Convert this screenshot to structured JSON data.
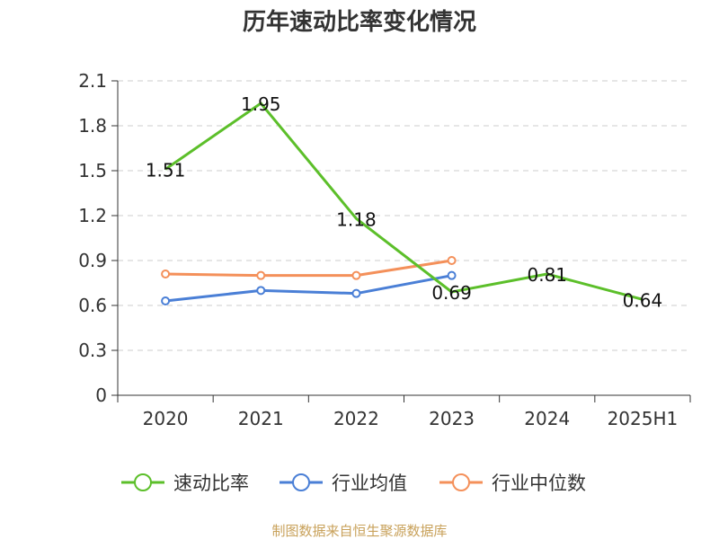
{
  "chart_data": {
    "type": "line",
    "title": "历年速动比率变化情况",
    "categories": [
      "2020",
      "2021",
      "2022",
      "2023",
      "2024",
      "2025H1"
    ],
    "y_ticks": [
      "0",
      "0.3",
      "0.6",
      "0.9",
      "1.2",
      "1.5",
      "1.8",
      "2.1"
    ],
    "ylim": [
      0,
      2.1
    ],
    "grid": true,
    "legend_position": "bottom",
    "series": [
      {
        "name": "速动比率",
        "color": "#5cbf2a",
        "values": [
          1.51,
          1.95,
          1.18,
          0.69,
          0.81,
          0.64
        ],
        "labels": [
          "1.51",
          "1.95",
          "1.18",
          "0.69",
          "0.81",
          "0.64"
        ]
      },
      {
        "name": "行业均值",
        "color": "#4a7fd6",
        "values": [
          0.63,
          0.7,
          0.68,
          0.8,
          null,
          null
        ]
      },
      {
        "name": "行业中位数",
        "color": "#f4905a",
        "values": [
          0.81,
          0.8,
          0.8,
          0.9,
          null,
          null
        ]
      }
    ],
    "source": "制图数据来自恒生聚源数据库"
  }
}
